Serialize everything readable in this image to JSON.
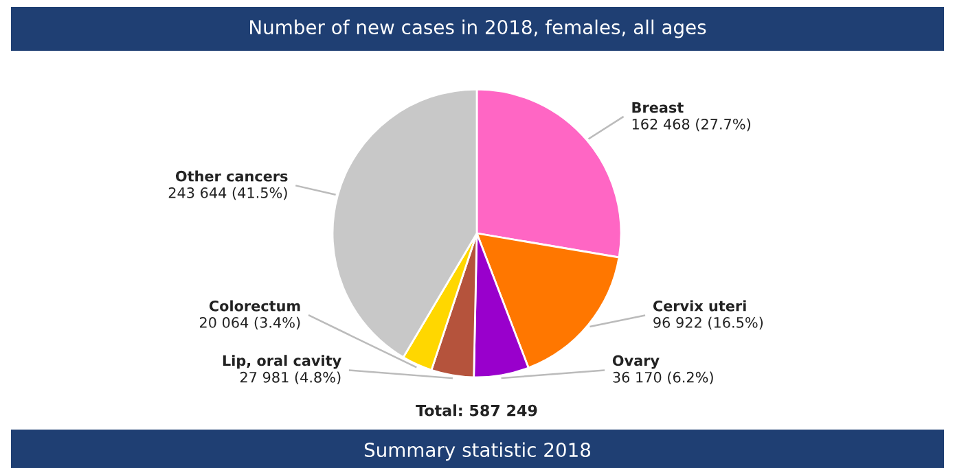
{
  "chart_data": {
    "type": "pie",
    "title": "Number of new cases in 2018, females, all ages",
    "categories": [
      "Breast",
      "Cervix uteri",
      "Ovary",
      "Lip, oral cavity",
      "Colorectum",
      "Other cancers"
    ],
    "values": [
      162468,
      96922,
      36170,
      27981,
      20064,
      243644
    ],
    "colors": [
      "#ff66c4",
      "#ff7700",
      "#9900cc",
      "#b5533c",
      "#ffd700",
      "#c8c8c8"
    ],
    "value_labels": [
      "162 468 (27.7%)",
      "96 922 (16.5%)",
      "36 170 (6.2%)",
      "27 981 (4.8%)",
      "20 064 (3.4%)",
      "243 644 (41.5%)"
    ],
    "annotations": [
      "Total: 587 249",
      "Summary statistic 2018"
    ]
  }
}
